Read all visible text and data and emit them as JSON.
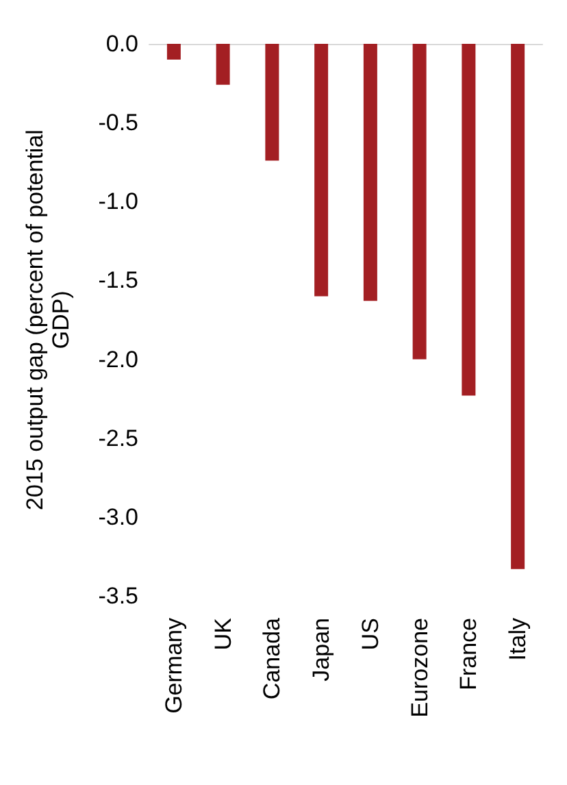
{
  "chart_data": {
    "type": "bar",
    "ylabel": "2015 output gap (percent of potential\nGDP)",
    "categories": [
      "Germany",
      "UK",
      "Canada",
      "Japan",
      "US",
      "Eurozone",
      "France",
      "Italy"
    ],
    "values": [
      -0.1,
      -0.26,
      -0.74,
      -1.6,
      -1.63,
      -2.0,
      -2.23,
      -3.33
    ],
    "color": "#a31f23",
    "ylim": [
      -3.5,
      0
    ],
    "yticks": [
      {
        "value": 0,
        "label": "0.0"
      },
      -0.5,
      {
        "value": -1,
        "label": "-1.0"
      },
      -1.5,
      {
        "value": -2,
        "label": "-2.0"
      },
      -2.5,
      {
        "value": -3,
        "label": "-3.0"
      },
      -3.5
    ],
    "grid": false
  }
}
